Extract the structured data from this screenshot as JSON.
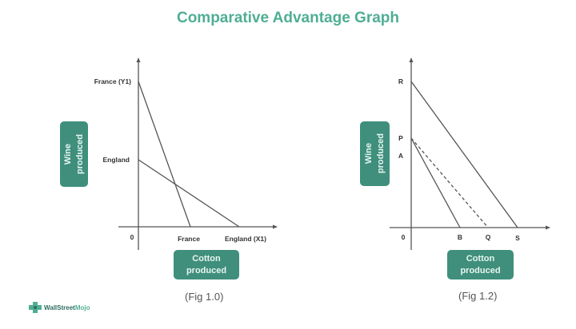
{
  "title": "Comparative Advantage Graph",
  "colors": {
    "title": "#4fae94",
    "label_box": "#3f8f7c",
    "lines": "#555555"
  },
  "fig1": {
    "y_axis_box": "Wine produced",
    "y_axis_box_lines": [
      "Wine",
      "produced"
    ],
    "x_axis_box_lines": [
      "Cotton",
      "produced"
    ],
    "origin": "0",
    "y_labels": {
      "france": "France (Y1)",
      "england": "England"
    },
    "x_labels": {
      "france": "France",
      "england": "England (X1)"
    },
    "caption": "(Fig 1.0)"
  },
  "fig2": {
    "y_axis_box_lines": [
      "Wine",
      "produced"
    ],
    "x_axis_box_lines": [
      "Cotton",
      "produced"
    ],
    "origin": "0",
    "y_labels": {
      "r": "R",
      "p": "P",
      "a": "A"
    },
    "x_labels": {
      "b": "B",
      "q": "Q",
      "s": "S"
    },
    "caption": "(Fig 1.2)"
  },
  "logo": {
    "brand_part1": "WallStreet",
    "brand_part2": "Mojo"
  }
}
